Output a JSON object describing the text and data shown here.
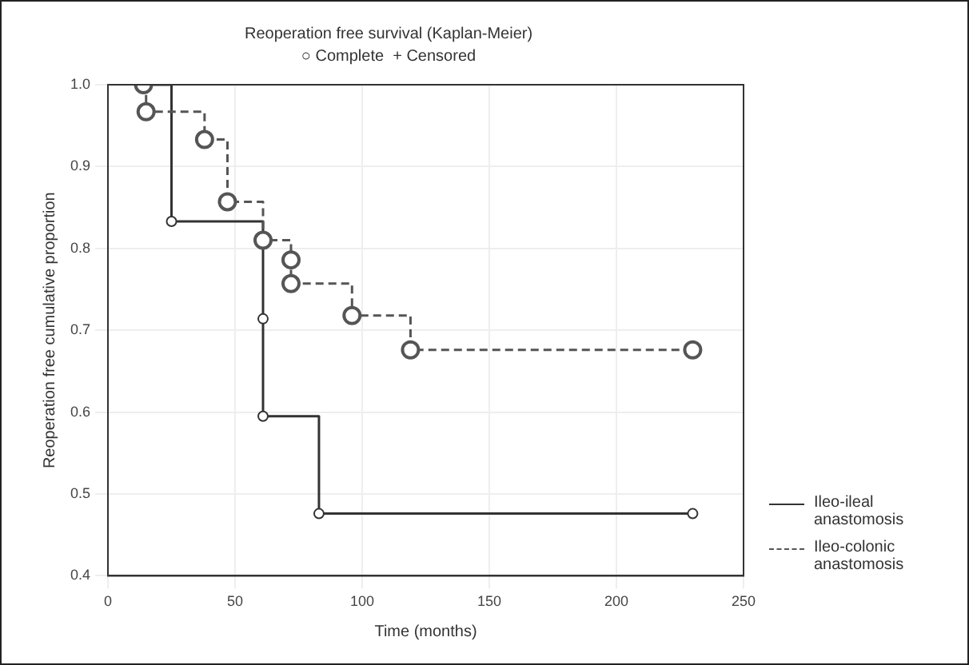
{
  "chart_data": {
    "type": "step",
    "title": "Reoperation free survival (Kaplan-Meier)",
    "subtitle": "○ Complete  + Censored",
    "xlabel": "Time (months)",
    "ylabel": "Reoperation free cumulative proportion",
    "xlim": [
      0,
      250
    ],
    "xticks": [
      0,
      50,
      100,
      150,
      200,
      250
    ],
    "ylim": [
      0.4,
      1.0
    ],
    "yticks": [
      {
        "value": 0.4,
        "label": "0.4"
      },
      {
        "value": 0.5,
        "label": "0.5"
      },
      {
        "value": 0.6,
        "label": "0.6"
      },
      {
        "value": 0.7,
        "label": "0.7"
      },
      {
        "value": 0.8,
        "label": "0.8"
      },
      {
        "value": 0.9,
        "label": "0.9"
      },
      {
        "value": 1.0,
        "label": "1.0"
      }
    ],
    "grid": true,
    "legend": "right",
    "marker": "circle",
    "series": [
      {
        "name": "Ileo-ileal anastomosis",
        "color": "#333333",
        "line_style": "solid",
        "x": [
          14,
          25,
          61,
          61,
          83,
          230
        ],
        "values": [
          1.0,
          0.833,
          0.714,
          0.595,
          0.476,
          0.476
        ]
      },
      {
        "name": "Ileo-colonic anastomosis",
        "color": "#555555",
        "line_style": "dashed",
        "x": [
          14,
          15,
          38,
          47,
          61,
          72,
          72,
          96,
          119,
          230
        ],
        "values": [
          1.0,
          0.967,
          0.933,
          0.857,
          0.81,
          0.786,
          0.757,
          0.718,
          0.676,
          0.676
        ]
      }
    ]
  }
}
